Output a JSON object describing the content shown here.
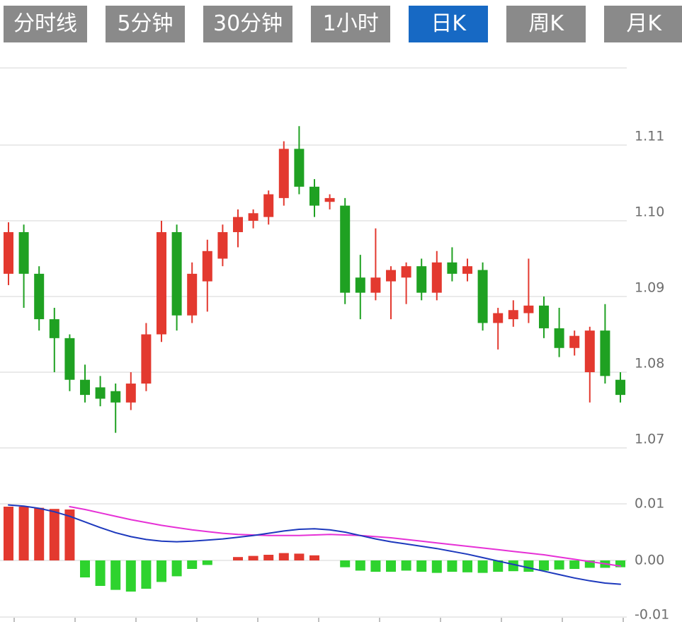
{
  "toolbar": {
    "tabs": [
      {
        "label": "分时线",
        "active": false
      },
      {
        "label": "5分钟",
        "active": false
      },
      {
        "label": "30分钟",
        "active": false
      },
      {
        "label": "1小时",
        "active": false
      },
      {
        "label": "日K",
        "active": true
      },
      {
        "label": "周K",
        "active": false
      },
      {
        "label": "月K",
        "active": false
      }
    ]
  },
  "colors": {
    "background": "#ffffff",
    "tab_bg": "#8a8a8a",
    "tab_active_bg": "#1769c4",
    "tab_text": "#ffffff",
    "grid": "#e4e4e4",
    "axis_text": "#6e6e6e",
    "up": "#e3392f",
    "down": "#1fa122",
    "hist_up": "#e3392f",
    "hist_down": "#2ed32e",
    "dif_line": "#1d39bd",
    "dea_line": "#e631d6"
  },
  "chart_data": {
    "type": "candlestick",
    "title": "",
    "xlabel": "",
    "ylabel": "",
    "grid": true,
    "legend": "none",
    "panels": [
      {
        "name": "price",
        "yticks": [
          1.07,
          1.08,
          1.09,
          1.1,
          1.11
        ],
        "ylim": [
          1.0655,
          1.1205
        ],
        "candles_ohlc": [
          [
            1.093,
            1.0998,
            1.0915,
            1.0985
          ],
          [
            1.0985,
            1.0995,
            1.0885,
            1.093
          ],
          [
            1.093,
            1.094,
            1.0855,
            1.087
          ],
          [
            1.087,
            1.0885,
            1.08,
            1.0845
          ],
          [
            1.0845,
            1.085,
            1.0775,
            1.079
          ],
          [
            1.079,
            1.081,
            1.076,
            1.077
          ],
          [
            1.078,
            1.0795,
            1.0755,
            1.0765
          ],
          [
            1.0775,
            1.0785,
            1.072,
            1.076
          ],
          [
            1.076,
            1.08,
            1.075,
            1.0785
          ],
          [
            1.0785,
            1.0865,
            1.0775,
            1.085
          ],
          [
            1.085,
            1.1,
            1.084,
            1.0985
          ],
          [
            1.0985,
            1.0995,
            1.0855,
            1.0875
          ],
          [
            1.0875,
            1.0945,
            1.0865,
            1.093
          ],
          [
            1.092,
            1.0975,
            1.088,
            1.096
          ],
          [
            1.095,
            1.0995,
            1.094,
            1.0985
          ],
          [
            1.0985,
            1.1015,
            1.0965,
            1.1005
          ],
          [
            1.1,
            1.1015,
            1.099,
            1.101
          ],
          [
            1.1005,
            1.104,
            1.0995,
            1.1035
          ],
          [
            1.103,
            1.1105,
            1.102,
            1.1095
          ],
          [
            1.1095,
            1.1125,
            1.1035,
            1.1045
          ],
          [
            1.1045,
            1.1055,
            1.1005,
            1.102
          ],
          [
            1.1025,
            1.1035,
            1.1015,
            1.103
          ],
          [
            1.102,
            1.103,
            1.089,
            1.0905
          ],
          [
            1.0925,
            1.0955,
            1.087,
            1.0905
          ],
          [
            1.0905,
            1.099,
            1.0895,
            1.0925
          ],
          [
            1.092,
            1.094,
            1.087,
            1.0935
          ],
          [
            1.0925,
            1.0945,
            1.089,
            1.094
          ],
          [
            1.094,
            1.095,
            1.0895,
            1.0905
          ],
          [
            1.0905,
            1.096,
            1.0895,
            1.0945
          ],
          [
            1.0945,
            1.0965,
            1.092,
            1.093
          ],
          [
            1.093,
            1.095,
            1.092,
            1.094
          ],
          [
            1.0935,
            1.0945,
            1.0855,
            1.0865
          ],
          [
            1.0865,
            1.0885,
            1.083,
            1.0878
          ],
          [
            1.087,
            1.0895,
            1.086,
            1.0882
          ],
          [
            1.0878,
            1.095,
            1.0865,
            1.0888
          ],
          [
            1.0888,
            1.09,
            1.0845,
            1.0858
          ],
          [
            1.0858,
            1.0885,
            1.082,
            1.0832
          ],
          [
            1.0832,
            1.0855,
            1.0822,
            1.0848
          ],
          [
            1.08,
            1.086,
            1.076,
            1.0855
          ],
          [
            1.0855,
            1.089,
            1.0785,
            1.0795
          ],
          [
            1.079,
            1.08,
            1.076,
            1.077
          ]
        ]
      },
      {
        "name": "macd",
        "yticks": [
          -0.01,
          0.0,
          0.01
        ],
        "ylim": [
          -0.011,
          0.0115
        ],
        "histogram": [
          0.0095,
          0.0095,
          0.0093,
          0.0091,
          0.009,
          -0.003,
          -0.0045,
          -0.0052,
          -0.0055,
          -0.005,
          -0.0038,
          -0.0028,
          -0.0015,
          -0.0008,
          0,
          0.0006,
          0.0008,
          0.001,
          0.0013,
          0.0012,
          0.0009,
          0,
          -0.0012,
          -0.0018,
          -0.002,
          -0.002,
          -0.0018,
          -0.002,
          -0.0022,
          -0.002,
          -0.0021,
          -0.0022,
          -0.002,
          -0.0019,
          -0.002,
          -0.0018,
          -0.0016,
          -0.0015,
          -0.0013,
          -0.0013,
          -0.0012
        ],
        "dif": [
          0.0098,
          0.0096,
          0.0092,
          0.0086,
          0.0078,
          0.0068,
          0.0058,
          0.0049,
          0.0042,
          0.0037,
          0.0034,
          0.0033,
          0.0034,
          0.0036,
          0.0038,
          0.0041,
          0.0044,
          0.0048,
          0.0052,
          0.0055,
          0.0056,
          0.0054,
          0.005,
          0.0044,
          0.0038,
          0.0033,
          0.0029,
          0.0025,
          0.0021,
          0.0016,
          0.0011,
          0.0005,
          -0.0001,
          -0.0007,
          -0.0013,
          -0.0019,
          -0.0025,
          -0.0031,
          -0.0036,
          -0.004,
          -0.0042
        ],
        "dea": [
          null,
          null,
          null,
          null,
          0.0095,
          0.009,
          0.0084,
          0.0078,
          0.0072,
          0.0067,
          0.0062,
          0.0058,
          0.0054,
          0.0051,
          0.0048,
          0.0046,
          0.0045,
          0.0044,
          0.0044,
          0.0044,
          0.0045,
          0.0046,
          0.0045,
          0.0044,
          0.0042,
          0.004,
          0.0037,
          0.0034,
          0.0031,
          0.0028,
          0.0025,
          0.0022,
          0.0019,
          0.0016,
          0.0013,
          0.001,
          0.0006,
          0.0002,
          -0.0002,
          -0.0006,
          -0.001
        ]
      }
    ]
  }
}
